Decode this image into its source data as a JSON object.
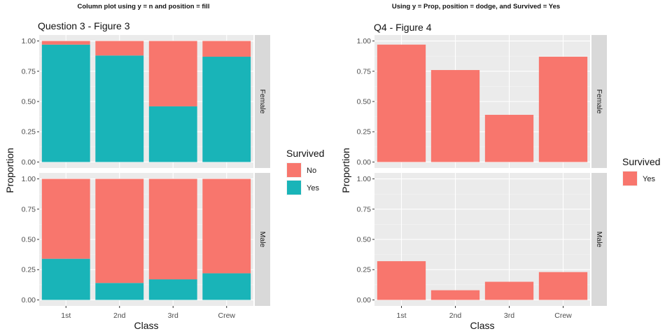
{
  "chart_data": [
    {
      "type": "bar",
      "header": "Column plot using y = n and position = fill",
      "title": "Question 3 - Figure 3",
      "xlabel": "Class",
      "ylabel": "Proportion",
      "categories": [
        "1st",
        "2nd",
        "3rd",
        "Crew"
      ],
      "yticks": [
        "0.00",
        "0.25",
        "0.50",
        "0.75",
        "1.00"
      ],
      "ylim": [
        0,
        1.0
      ],
      "stacked": true,
      "legend": {
        "title": "Survived",
        "position": "right",
        "entries": [
          {
            "label": "No",
            "color": "#f8766d"
          },
          {
            "label": "Yes",
            "color": "#19b4b8"
          }
        ]
      },
      "facets": [
        {
          "label": "Female",
          "series": [
            {
              "name": "No",
              "values": [
                0.03,
                0.12,
                0.54,
                0.13
              ]
            },
            {
              "name": "Yes",
              "values": [
                0.97,
                0.88,
                0.46,
                0.87
              ]
            }
          ]
        },
        {
          "label": "Male",
          "series": [
            {
              "name": "No",
              "values": [
                0.66,
                0.86,
                0.83,
                0.78
              ]
            },
            {
              "name": "Yes",
              "values": [
                0.34,
                0.14,
                0.17,
                0.22
              ]
            }
          ]
        }
      ],
      "grid": true
    },
    {
      "type": "bar",
      "header": "Using y = Prop, position = dodge, and Survived = Yes",
      "title": "Q4 - Figure 4",
      "xlabel": "Class",
      "ylabel": "Proportion",
      "categories": [
        "1st",
        "2nd",
        "3rd",
        "Crew"
      ],
      "yticks": [
        "0.00",
        "0.25",
        "0.50",
        "0.75",
        "1.00"
      ],
      "ylim": [
        0,
        1.0
      ],
      "stacked": false,
      "legend": {
        "title": "Survived",
        "position": "right",
        "entries": [
          {
            "label": "Yes",
            "color": "#f8766d"
          }
        ]
      },
      "facets": [
        {
          "label": "Female",
          "series": [
            {
              "name": "Yes",
              "values": [
                0.97,
                0.76,
                0.39,
                0.87
              ]
            }
          ]
        },
        {
          "label": "Male",
          "series": [
            {
              "name": "Yes",
              "values": [
                0.32,
                0.08,
                0.15,
                0.23
              ]
            }
          ]
        }
      ],
      "grid": true
    }
  ],
  "colors": {
    "panel_bg": "#ebebeb",
    "grid_major": "#ffffff",
    "strip_bg": "#d9d9d9"
  }
}
